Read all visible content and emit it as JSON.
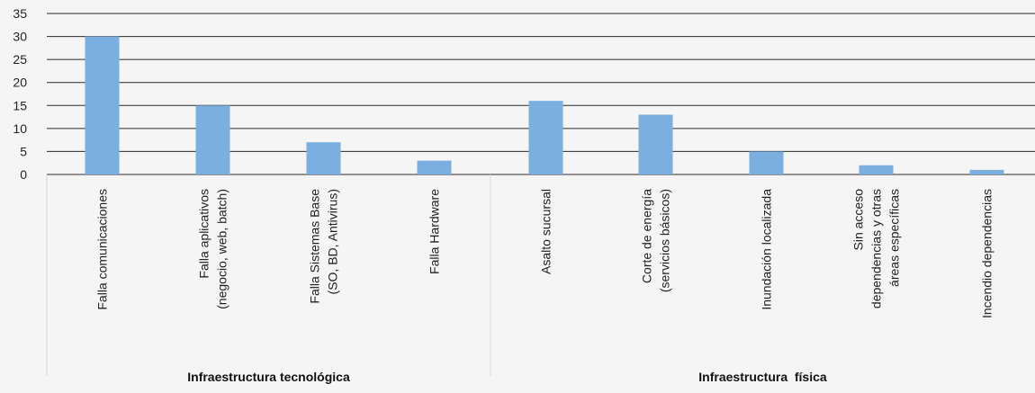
{
  "chart_data": {
    "type": "bar",
    "title": "",
    "xlabel": "",
    "ylabel": "",
    "ylim": [
      0,
      35
    ],
    "yticks": [
      0,
      5,
      10,
      15,
      20,
      25,
      30,
      35
    ],
    "grid": true,
    "legend": "none",
    "bar_color": "#7aafe0",
    "gridline_color": "#2b2b2b",
    "background_color": "#f5f5f5",
    "categories": [
      [
        "Falla comunicaciones"
      ],
      [
        "Falla aplicativos",
        "(negocio, web, batch)"
      ],
      [
        "Falla Sistemas Base",
        "(SO, BD, Antivirus)"
      ],
      [
        "Falla Hardware"
      ],
      [
        "Asalto sucursal"
      ],
      [
        "Corte de energía",
        "(servicios básicos)"
      ],
      [
        "Inundación localizada"
      ],
      [
        "Sin acceso",
        "dependencias y otras",
        "áreas específicas"
      ],
      [
        "Incendio dependencias"
      ]
    ],
    "values": [
      30,
      15,
      7,
      3,
      16,
      13,
      5,
      2,
      1
    ],
    "groups": [
      {
        "label": "Infraestructura tecnológica",
        "category_count": 4
      },
      {
        "label": "Infraestructura  física",
        "category_count": 5
      }
    ]
  }
}
